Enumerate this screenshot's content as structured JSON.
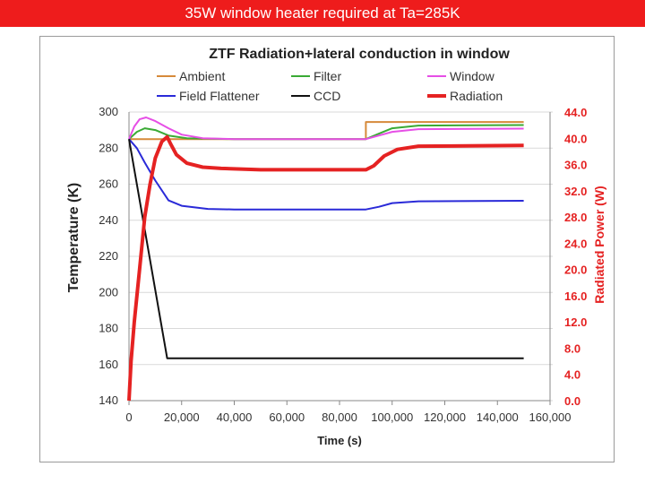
{
  "slide": {
    "title": "35W window heater required at Ta=285K"
  },
  "chart_data": {
    "type": "line",
    "title": "ZTF Radiation+lateral conduction in window",
    "xlabel": "Time (s)",
    "ylabel": "Temperature (K)",
    "y2label": "Radiated Power (W)",
    "xlim": [
      0,
      160000
    ],
    "ylim": [
      140,
      300
    ],
    "y2lim": [
      0,
      44
    ],
    "x_ticks": [
      0,
      20000,
      40000,
      60000,
      80000,
      100000,
      120000,
      140000,
      160000
    ],
    "x_tick_labels": [
      "0",
      "20,000",
      "40,000",
      "60,000",
      "80,000",
      "100,000",
      "120,000",
      "140,000",
      "160,000"
    ],
    "y_ticks": [
      140,
      160,
      180,
      200,
      220,
      240,
      260,
      280,
      300
    ],
    "y_tick_labels": [
      "140",
      "160",
      "180",
      "200",
      "220",
      "240",
      "260",
      "280",
      "300"
    ],
    "y2_ticks": [
      0,
      4,
      8,
      12,
      16,
      20,
      24,
      28,
      32,
      36,
      40,
      44
    ],
    "y2_tick_labels": [
      "0.0",
      "4.0",
      "8.0",
      "12.0",
      "16.0",
      "20.0",
      "24.0",
      "28.0",
      "32.0",
      "36.0",
      "40.0",
      "44.0"
    ],
    "grid": true,
    "legend_position": "top",
    "series": [
      {
        "name": "Ambient",
        "color": "#d68a3a",
        "axis": "left",
        "width": 2,
        "points": [
          [
            0,
            285
          ],
          [
            90000,
            285
          ],
          [
            90000,
            294.5
          ],
          [
            150000,
            294.5
          ]
        ]
      },
      {
        "name": "Filter",
        "color": "#3aaa35",
        "axis": "left",
        "width": 2,
        "points": [
          [
            0,
            285
          ],
          [
            3000,
            289
          ],
          [
            6000,
            291
          ],
          [
            10000,
            290
          ],
          [
            15000,
            287
          ],
          [
            22000,
            285.5
          ],
          [
            40000,
            285
          ],
          [
            90000,
            285
          ],
          [
            95000,
            288
          ],
          [
            100000,
            291
          ],
          [
            110000,
            292.5
          ],
          [
            150000,
            292.8
          ]
        ]
      },
      {
        "name": "Window",
        "color": "#e64fe6",
        "axis": "left",
        "width": 2,
        "points": [
          [
            0,
            285
          ],
          [
            2000,
            292
          ],
          [
            4000,
            296
          ],
          [
            6500,
            297
          ],
          [
            10000,
            295
          ],
          [
            15000,
            291
          ],
          [
            20000,
            287.5
          ],
          [
            28000,
            285.5
          ],
          [
            40000,
            285
          ],
          [
            90000,
            285
          ],
          [
            95000,
            287
          ],
          [
            100000,
            289
          ],
          [
            110000,
            290.5
          ],
          [
            150000,
            290.8
          ]
        ]
      },
      {
        "name": "Field Flattener",
        "color": "#2a2ad8",
        "axis": "left",
        "width": 2,
        "points": [
          [
            0,
            285
          ],
          [
            3000,
            280
          ],
          [
            6000,
            272
          ],
          [
            10000,
            262
          ],
          [
            15000,
            251
          ],
          [
            20000,
            248
          ],
          [
            30000,
            246.3
          ],
          [
            40000,
            246
          ],
          [
            90000,
            246
          ],
          [
            95000,
            247.5
          ],
          [
            100000,
            249.5
          ],
          [
            110000,
            250.5
          ],
          [
            150000,
            250.8
          ]
        ]
      },
      {
        "name": "CCD",
        "color": "#111111",
        "axis": "left",
        "width": 2,
        "points": [
          [
            0,
            285
          ],
          [
            14500,
            163.5
          ],
          [
            150000,
            163.5
          ]
        ]
      },
      {
        "name": "Radiation",
        "color": "#e52222",
        "axis": "right",
        "width": 4,
        "points": [
          [
            0,
            0
          ],
          [
            800,
            6
          ],
          [
            2000,
            12
          ],
          [
            4000,
            20
          ],
          [
            6000,
            28
          ],
          [
            8000,
            33
          ],
          [
            10000,
            37
          ],
          [
            12500,
            39.5
          ],
          [
            14500,
            40.2
          ],
          [
            16000,
            39
          ],
          [
            18000,
            37.5
          ],
          [
            22000,
            36.2
          ],
          [
            28000,
            35.6
          ],
          [
            35000,
            35.4
          ],
          [
            50000,
            35.2
          ],
          [
            90000,
            35.2
          ],
          [
            93000,
            35.8
          ],
          [
            97000,
            37.3
          ],
          [
            102000,
            38.3
          ],
          [
            110000,
            38.8
          ],
          [
            150000,
            38.9
          ]
        ]
      }
    ]
  }
}
